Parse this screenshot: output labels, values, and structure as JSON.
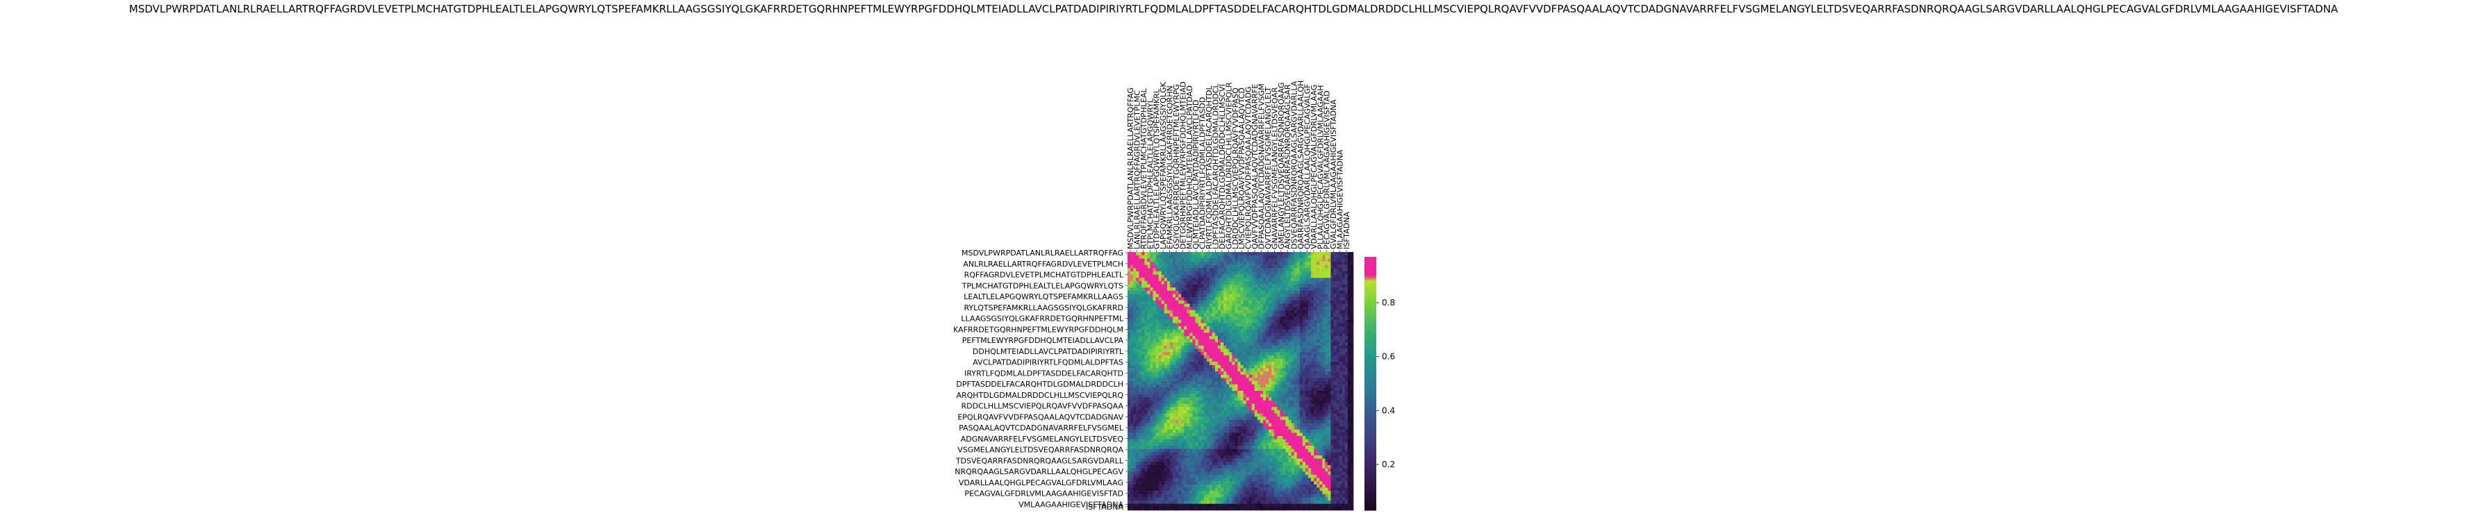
{
  "chart_data": {
    "type": "heatmap",
    "title": "MSDVLPWRPDATLANLRLRAELLARTRQFFAGRDVLEVETPLMCHATGTDPHLEALTLELAPGQWRYLQTSPEFAMKRLLAAGSGSIYQLGKAFRRDETGQRHNPEFTMLEWYRPGFDDHQLMTEIADLLAVCLPATDADIPIRIYRTLFQDMLALDPFTASDDELFACARQHTDLGDMALDRDDCLHLLMSCVIEPQLRQAVFVVDFPASQAALAQVTCDADGNAVARRFELFVSGMELANGYLELTDSVEQARRFASDNRQRQAAGLSARGVDARLLAALQHGLPECAGVALGFDRLVMLAAGAAHIGEVISFTADNA",
    "xlabel": "",
    "ylabel": "",
    "x_tick_labels": [
      "MSDVLPWRPDATLANLRLRAELLARTRQFFAG",
      "LANLRLRAELLARTRQFFAGRDVLEVETPLMC",
      "RTRQFFAGRDVLEVETPLMCHATGTDPHLEAL",
      "ETPLMCHATGTDPHLEALTLELAPGQWRYL",
      "GTDPHLEALTLELAPGQWRYLQTSPEFAMKRL",
      "LAPGQWRYLQTSPEFAMKRLLAAGSGSIYQLGK",
      "EFAMKRLLAAGSGSIYQLGKAFRRDETGQRHN",
      "GSIYQLGKAFRRDETGQRHNPEFTMLEWYRPG",
      "DETGQRHNPEFTMLEWYRPGFDDHQLMTEIAD",
      "MLEWYRPGFDDHQLMTEIADLLAVCLPATDAD",
      "QLMTEIADLLAVCLPATDADIPIRIYRTLFQD",
      "CLPATDADIPIRIYRTLFQDMLALDPFTASDD",
      "RIYRTLFQDMLALDPFTASDDELFACARQHTDL",
      "LDPFTASDDELFACARQHTDLGDMALDRDDCL",
      "DELFACARQHTDLGDMALDRDDCLHLLMSCVI",
      "GARQHTDLGDMALDRDDCLHLLMSCVIEPQLR",
      "LDRDDCLHLLMSCVIEPQLRQAVFVVDFPASQ",
      "LMSCVIEPQLRQAVFVVDFPASQAALAQVTCD",
      "CVIEPQLRQAVFVVDFPASQAALAQVTCDADG",
      "QAVFVVDFPASQAALAQVTCDADGNAVARRFE",
      "DFPASQAALAQVTCDADGNAVARRFELFVSGM",
      "QVTCDADGNAVARRFELFVSGMELANGYLELT",
      "GNAVARRFELFVSGMELANGYLELTDSVEQAR",
      "GMELANGYLELTDSVEQARRFASDNRQRQAAG",
      "ANGYLELTDSVEQARRFASDNRQRQAAGLSAR",
      "DSVEQARRFASDNRQRQAAGLSARGVDARLLA",
      "QARRFASDNRQRQAAGLSARGVDARLLAALQH",
      "QAAGLSARGVDARLLAALQHGLPECAGVALGF",
      "VDARLLAALQHGLPECAGVALGFDRLVMLAAG",
      "PLLAALQHGLPECAGVALGFDRLVMLAAGAAH",
      "PECAGVALGFDRLVMLAAGAAHIGEVISFTAD",
      "GVALGFDRLVMLAAGAAHIGEVISFTADNA",
      "MLAAGAAHIGEVISFTADNA",
      "ISFTADNA"
    ],
    "y_tick_labels": [
      "MSDVLPWRPDATLANLRLRAELLARTRQFFAG",
      "ANLRLRAELLARTRQFFAGRDVLEVETPLMCH",
      "RQFFAGRDVLEVETPLMCHATGTDPHLEALTL",
      "TPLMCHATGTDPHLEALTLELAPGQWRYLQTS",
      "LEALTLELAPGQWRYLQTSPEFAMKRLLAAGS",
      "RYLQTSPEFAMKRLLAAGSGSIYQLGKAFRRD",
      "LLAAGSGSIYQLGKAFRRDETGQRHNPEFTML",
      "KAFRRDETGQRHNPEFTMLEWYRPGFDDHQLM",
      "PEFTMLEWYRPGFDDHQLMTEIADLLAVCLPA",
      "DDHQLMTEIADLLAVCLPATDADIPIRIYRTL",
      "AVCLPATDADIPIRIYRTLFQDMLALDPFTAS",
      "IRYRTLFQDMLALDPFTASDDELFACARQHTD",
      "DPFTASDDELFACARQHTDLGDMALDRDDCLH",
      "ARQHTDLGDMALDRDDCLHLLMSCVIEPQLRQ",
      "RDDCLHLLMSCVIEPQLRQAVFVVDFPASQAA",
      "EPQLRQAVFVVDFPASQAALAQVTCDADGNAV",
      "PASQAALAQVTCDADGNAVARRFELFVSGMEL",
      "ADGNAVARRFELFVSGMELANGYLELTDSVEQ",
      "VSGMELANGYLELTDSVEQARRFASDNRQRQA",
      "TDSVEQARRFASDNRQRQAAGLSARGVDARLL",
      "NRQRQAAGLSARGVDARLLAALQHGLPECAGV",
      "VDARLLAALQHGLPECAGVALGFDRLVMLAAG",
      "PECAGVALGFDRLVMLAAGAAHIGEVISFTAD",
      "VMLAAGAAHIGEVISFTADNA",
      "ISFTADNA"
    ],
    "n_rows": 80,
    "n_cols": 80,
    "value_range": [
      0.03,
      0.97
    ],
    "colorbar_ticks": [
      0.2,
      0.4,
      0.6,
      0.8
    ],
    "colormap": "custom: black-purple-blue-teal-green-yellowgreen, pink above 0.9",
    "colors": {
      "low": "#1b0b2e",
      "mid": "#2f8f8a",
      "high": "#a6e22e",
      "top": "#f0249a"
    },
    "colorbar_stops": [
      {
        "v": 0.0,
        "c": "#0a0612"
      },
      {
        "v": 0.1,
        "c": "#2a1240"
      },
      {
        "v": 0.22,
        "c": "#3d2a6e"
      },
      {
        "v": 0.35,
        "c": "#3b4f8e"
      },
      {
        "v": 0.48,
        "c": "#2f7a95"
      },
      {
        "v": 0.6,
        "c": "#23998a"
      },
      {
        "v": 0.7,
        "c": "#3cb46b"
      },
      {
        "v": 0.8,
        "c": "#7cd13f"
      },
      {
        "v": 0.88,
        "c": "#b6e02b"
      },
      {
        "v": 0.9,
        "c": "#f0249a"
      },
      {
        "v": 1.0,
        "c": "#ff2aa6"
      }
    ]
  }
}
